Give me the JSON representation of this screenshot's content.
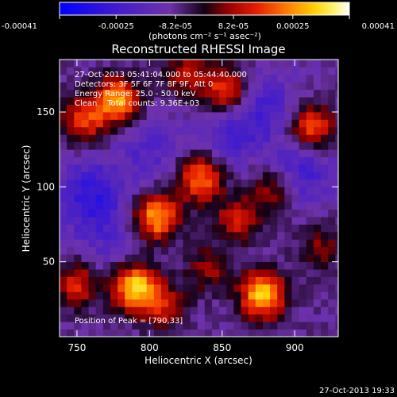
{
  "colorbar": {
    "tick_labels": [
      "-0.00041",
      "-0.00025",
      "-8.2e-05",
      "8.2e-05",
      "0.00025",
      "0.00041"
    ],
    "tick_values": [
      -0.00041,
      -0.00025,
      -8.2e-05,
      8.2e-05,
      0.00025,
      0.00041
    ],
    "units_label": "(photons cm⁻² s⁻¹ asec⁻²)",
    "range": [
      -0.00041,
      0.00041
    ]
  },
  "chart_data": {
    "type": "heatmap",
    "title": "Reconstructed RHESSI Image",
    "xlabel": "Heliocentric X (arcsec)",
    "ylabel": "Heliocentric Y (arcsec)",
    "xlim": [
      738,
      930
    ],
    "ylim": [
      0,
      185
    ],
    "xticks": [
      750,
      800,
      850,
      900
    ],
    "yticks": [
      50,
      100,
      150
    ],
    "annotations": [
      "27-Oct-2013 05:41:04.000 to 05:44:40.000",
      "Detectors: 3F 5F 6F 7F 8F 9F, Att 0",
      "Energy Range: 25.0 - 50.0 keV",
      "Clean    Total counts: 9.36E+03"
    ],
    "peak_label": "Position of Peak = [790,33]",
    "colormap": "rhessi-blue-purple-red-yellow-white",
    "grid": false,
    "sources": [
      {
        "x": 878,
        "y": 28,
        "value": 0.00041
      },
      {
        "x": 790,
        "y": 33,
        "value": 0.00041
      },
      {
        "x": 805,
        "y": 80,
        "value": 0.00036
      },
      {
        "x": 835,
        "y": 106,
        "value": 0.00032
      },
      {
        "x": 778,
        "y": 158,
        "value": 0.00035
      },
      {
        "x": 755,
        "y": 145,
        "value": 0.00025
      },
      {
        "x": 853,
        "y": 165,
        "value": 0.00028
      },
      {
        "x": 912,
        "y": 140,
        "value": 0.00028
      },
      {
        "x": 860,
        "y": 78,
        "value": 0.0002
      },
      {
        "x": 885,
        "y": 98,
        "value": 0.00018
      },
      {
        "x": 825,
        "y": 175,
        "value": 0.00018
      },
      {
        "x": 840,
        "y": 45,
        "value": 0.00015
      },
      {
        "x": 750,
        "y": 35,
        "value": 0.00022
      },
      {
        "x": 810,
        "y": 20,
        "value": 0.00018
      },
      {
        "x": 918,
        "y": 60,
        "value": 0.00014
      }
    ],
    "troughs": [
      {
        "x": 760,
        "y": 95,
        "value": -0.00018
      },
      {
        "x": 880,
        "y": 155,
        "value": -0.00012
      },
      {
        "x": 905,
        "y": 110,
        "value": -0.00015
      },
      {
        "x": 800,
        "y": 125,
        "value": -0.0001
      },
      {
        "x": 855,
        "y": 135,
        "value": -0.00012
      },
      {
        "x": 770,
        "y": 65,
        "value": -8e-05
      }
    ]
  },
  "footer": {
    "timestamp": "27-Oct-2013 19:33"
  }
}
